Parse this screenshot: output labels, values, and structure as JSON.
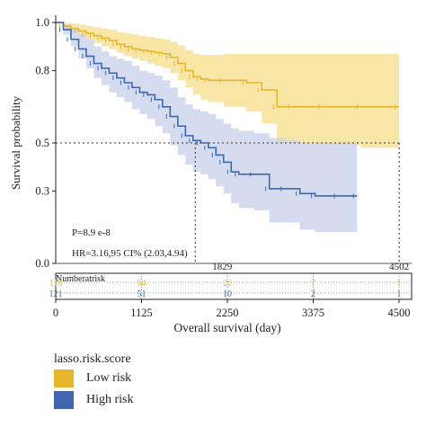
{
  "chart_data": {
    "type": "line",
    "subtype": "kaplan-meier",
    "xlabel": "Overall survival (day)",
    "ylabel": "Survival probability",
    "xlim": [
      0,
      4500
    ],
    "ylim": [
      0,
      1.0
    ],
    "x_ticks": [
      "0",
      "1125",
      "2250",
      "3375",
      "4500"
    ],
    "y_ticks": [
      "0.0",
      "0.3",
      "0.5",
      "0.8",
      "1.0"
    ],
    "grid": false,
    "annotations": {
      "p_value": "P=8.9 e-8",
      "hazard_ratio": "HR=3.16,95 CI% (2.03,4.94)",
      "median_high": "1829",
      "median_low": "4502",
      "reference_y": 0.5
    },
    "series": [
      {
        "name": "Low risk",
        "color": "#e8b62a",
        "band_color": "#f6dd8a",
        "x": [
          0,
          100,
          200,
          300,
          400,
          500,
          600,
          700,
          800,
          900,
          1000,
          1100,
          1200,
          1300,
          1400,
          1500,
          1600,
          1700,
          1800,
          1900,
          2000,
          2200,
          2500,
          2700,
          2900,
          3100,
          3500,
          4000,
          4500
        ],
        "y": [
          1.0,
          0.985,
          0.975,
          0.965,
          0.955,
          0.945,
          0.935,
          0.925,
          0.91,
          0.9,
          0.89,
          0.885,
          0.88,
          0.875,
          0.87,
          0.855,
          0.83,
          0.8,
          0.775,
          0.765,
          0.76,
          0.76,
          0.75,
          0.72,
          0.65,
          0.65,
          0.65,
          0.65,
          0.65
        ],
        "lower": [
          1.0,
          0.975,
          0.96,
          0.94,
          0.93,
          0.915,
          0.9,
          0.89,
          0.875,
          0.86,
          0.85,
          0.84,
          0.83,
          0.82,
          0.81,
          0.79,
          0.76,
          0.73,
          0.7,
          0.68,
          0.67,
          0.65,
          0.63,
          0.58,
          0.5,
          0.5,
          0.49,
          0.48,
          0.48
        ],
        "upper": [
          1.0,
          0.998,
          0.995,
          0.99,
          0.985,
          0.98,
          0.975,
          0.97,
          0.96,
          0.955,
          0.95,
          0.945,
          0.94,
          0.935,
          0.93,
          0.92,
          0.905,
          0.885,
          0.87,
          0.865,
          0.865,
          0.87,
          0.87,
          0.87,
          0.87,
          0.87,
          0.87,
          0.87,
          0.87
        ]
      },
      {
        "name": "High risk",
        "color": "#3f67b1",
        "band_color": "#c7d0ea",
        "x": [
          0,
          100,
          200,
          300,
          400,
          500,
          600,
          700,
          800,
          900,
          1000,
          1100,
          1200,
          1300,
          1400,
          1500,
          1600,
          1700,
          1800,
          1900,
          2000,
          2100,
          2200,
          2300,
          2400,
          2600,
          2800,
          3000,
          3200,
          3400,
          3700,
          3950
        ],
        "y": [
          1.0,
          0.97,
          0.93,
          0.89,
          0.86,
          0.83,
          0.81,
          0.79,
          0.77,
          0.75,
          0.73,
          0.71,
          0.7,
          0.68,
          0.65,
          0.61,
          0.57,
          0.53,
          0.51,
          0.5,
          0.48,
          0.45,
          0.42,
          0.38,
          0.37,
          0.37,
          0.31,
          0.31,
          0.29,
          0.28,
          0.28,
          0.28
        ],
        "lower": [
          1.0,
          0.95,
          0.9,
          0.85,
          0.81,
          0.77,
          0.74,
          0.71,
          0.69,
          0.67,
          0.64,
          0.62,
          0.6,
          0.57,
          0.54,
          0.49,
          0.45,
          0.41,
          0.38,
          0.37,
          0.35,
          0.32,
          0.29,
          0.25,
          0.23,
          0.22,
          0.17,
          0.17,
          0.14,
          0.13,
          0.13,
          0.13
        ],
        "upper": [
          1.0,
          0.99,
          0.97,
          0.95,
          0.93,
          0.9,
          0.88,
          0.86,
          0.85,
          0.84,
          0.82,
          0.8,
          0.79,
          0.78,
          0.76,
          0.73,
          0.69,
          0.66,
          0.64,
          0.63,
          0.62,
          0.6,
          0.58,
          0.56,
          0.55,
          0.54,
          0.52,
          0.51,
          0.5,
          0.5,
          0.5,
          0.5
        ]
      }
    ]
  },
  "risk_table": {
    "title": "Numberatrisk",
    "rows": [
      {
        "name": "Low risk",
        "color": "#e8b62a",
        "counts": [
          "118",
          "54",
          "20",
          "7",
          "1"
        ]
      },
      {
        "name": "High risk",
        "color": "#3f67b1",
        "counts": [
          "121",
          "51",
          "10",
          "2",
          "1"
        ]
      }
    ]
  },
  "legend": {
    "title": "lasso.risk.score",
    "placement": "bottom-left",
    "items": [
      {
        "label": "Low risk",
        "color": "#e8b62a"
      },
      {
        "label": "High risk",
        "color": "#3f67b1"
      }
    ]
  }
}
